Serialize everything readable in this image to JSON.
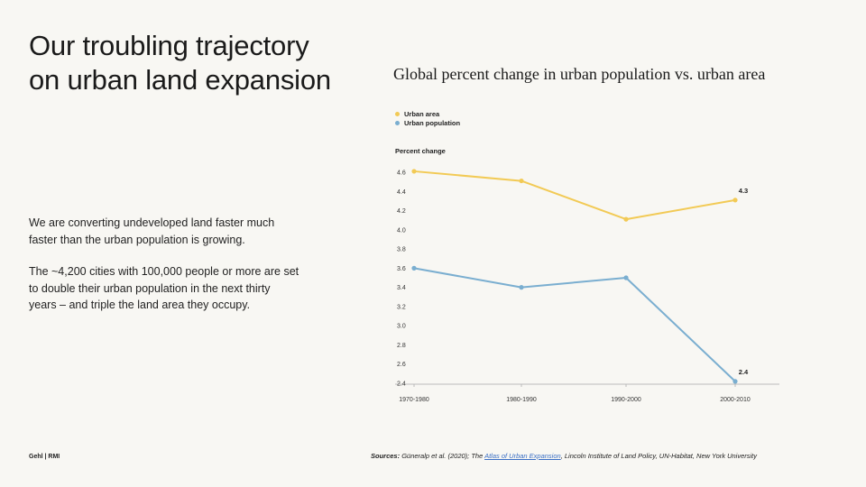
{
  "slide": {
    "title_line1": "Our troubling trajectory",
    "title_line2": "on urban land expansion",
    "paragraph1": "We are converting undeveloped land faster much faster than the urban population is growing.",
    "paragraph2": "The ~4,200 cities with 100,000 people or more are set to double their urban population in the next thirty years – and triple the land area they occupy."
  },
  "footer": {
    "brand": "Gehl | RMI",
    "sources_label": "Sources:",
    "sources_pre": " Güneralp et al. (2020); The ",
    "sources_link": "Atlas of Urban Expansion",
    "sources_post": ", Lincoln Institute of Land Policy, UN-Habitat, New York University"
  },
  "chart_data": {
    "type": "line",
    "title": "Global percent change in urban population vs. urban area",
    "ylabel": "Percent change",
    "xlabel": "",
    "categories": [
      "1970-1980",
      "1980-1990",
      "1990-2000",
      "2000-2010"
    ],
    "ylim": [
      2.4,
      4.7
    ],
    "yticks": [
      2.4,
      2.6,
      2.8,
      3.0,
      3.2,
      3.4,
      3.6,
      3.8,
      4.0,
      4.2,
      4.4,
      4.6
    ],
    "grid": false,
    "legend_position": "top-left",
    "series": [
      {
        "name": "Urban area",
        "color": "#f2ca55",
        "values": [
          4.61,
          4.51,
          4.11,
          4.31
        ],
        "end_label": "4.3"
      },
      {
        "name": "Urban population",
        "color": "#7aaed0",
        "values": [
          3.6,
          3.4,
          3.5,
          2.42
        ],
        "end_label": "2.4"
      }
    ]
  }
}
